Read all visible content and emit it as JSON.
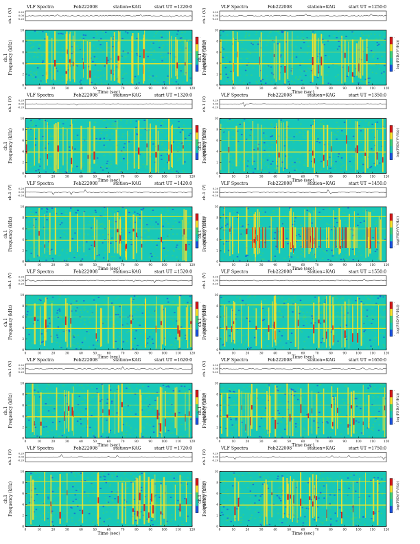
{
  "sheet": {
    "instrument": "VLF Spectra",
    "date": "Feb222008",
    "station": "station=KAG",
    "start_prefix": "start  UT  ="
  },
  "axes": {
    "ch_label": "ch.1 (V)",
    "freq_label": "Frequency (kHz)",
    "freq_prefix": "ch.1",
    "time_label": "Time (sec)",
    "cbar_label": "log(PSD/(V²/Hz))",
    "v_ticks": [
      "0.20",
      "0.00",
      "-0.20"
    ],
    "f_ticks": [
      "0",
      "2",
      "4",
      "6",
      "8",
      "10"
    ],
    "t_ticks": [
      "0",
      "10",
      "20",
      "30",
      "40",
      "50",
      "60",
      "70",
      "80",
      "90",
      "100",
      "110",
      "120"
    ],
    "cbar_ticks": [
      "-",
      "-"
    ]
  },
  "colors": {
    "background_field": "#18c8b8",
    "noise": "#3cd27a",
    "low": "#1a52e0",
    "high": "#f7e02a",
    "peak": "#d41818",
    "line_8k": "#d6e61e",
    "line_4k": "#eee524"
  },
  "chart_data": [
    {
      "type": "heatmap",
      "start_ut": "1220:0",
      "x": {
        "label": "Time (sec)",
        "range": [
          0,
          120
        ]
      },
      "y": {
        "label": "Frequency (kHz)",
        "range": [
          0,
          10
        ]
      },
      "grid": false,
      "colorbar": "right"
    },
    {
      "type": "heatmap",
      "start_ut": "1250:0",
      "x": {
        "label": "Time (sec)",
        "range": [
          0,
          120
        ]
      },
      "y": {
        "label": "Frequency (kHz)",
        "range": [
          0,
          10
        ]
      },
      "grid": false,
      "colorbar": "right"
    },
    {
      "type": "heatmap",
      "start_ut": "1320:0",
      "x": {
        "label": "Time (sec)",
        "range": [
          0,
          120
        ]
      },
      "y": {
        "label": "Frequency (kHz)",
        "range": [
          0,
          10
        ]
      },
      "grid": false,
      "colorbar": "right"
    },
    {
      "type": "heatmap",
      "start_ut": "1350:0",
      "x": {
        "label": "Time (sec)",
        "range": [
          0,
          120
        ]
      },
      "y": {
        "label": "Frequency (kHz)",
        "range": [
          0,
          10
        ]
      },
      "grid": false,
      "colorbar": "right"
    },
    {
      "type": "heatmap",
      "start_ut": "1420:0",
      "x": {
        "label": "Time (sec)",
        "range": [
          0,
          120
        ]
      },
      "y": {
        "label": "Frequency (kHz)",
        "range": [
          0,
          10
        ]
      },
      "grid": false,
      "colorbar": "right"
    },
    {
      "type": "heatmap",
      "start_ut": "1450:0",
      "x": {
        "label": "Time (sec)",
        "range": [
          0,
          120
        ]
      },
      "y": {
        "label": "Frequency (kHz)",
        "range": [
          0,
          10
        ]
      },
      "grid": false,
      "colorbar": "right"
    },
    {
      "type": "heatmap",
      "start_ut": "1520:0",
      "x": {
        "label": "Time (sec)",
        "range": [
          0,
          120
        ]
      },
      "y": {
        "label": "Frequency (kHz)",
        "range": [
          0,
          10
        ]
      },
      "grid": false,
      "colorbar": "right"
    },
    {
      "type": "heatmap",
      "start_ut": "1550:0",
      "x": {
        "label": "Time (sec)",
        "range": [
          0,
          120
        ]
      },
      "y": {
        "label": "Frequency (kHz)",
        "range": [
          0,
          10
        ]
      },
      "grid": false,
      "colorbar": "right"
    },
    {
      "type": "heatmap",
      "start_ut": "1620:0",
      "x": {
        "label": "Time (sec)",
        "range": [
          0,
          120
        ]
      },
      "y": {
        "label": "Frequency (kHz)",
        "range": [
          0,
          10
        ]
      },
      "grid": false,
      "colorbar": "right"
    },
    {
      "type": "heatmap",
      "start_ut": "1650:0",
      "x": {
        "label": "Time (sec)",
        "range": [
          0,
          120
        ]
      },
      "y": {
        "label": "Frequency (kHz)",
        "range": [
          0,
          10
        ]
      },
      "grid": false,
      "colorbar": "right"
    },
    {
      "type": "heatmap",
      "start_ut": "1720:0",
      "x": {
        "label": "Time (sec)",
        "range": [
          0,
          120
        ]
      },
      "y": {
        "label": "Frequency (kHz)",
        "range": [
          0,
          10
        ]
      },
      "grid": false,
      "colorbar": "right"
    },
    {
      "type": "heatmap",
      "start_ut": "1750:0",
      "x": {
        "label": "Time (sec)",
        "range": [
          0,
          120
        ]
      },
      "y": {
        "label": "Frequency (kHz)",
        "range": [
          0,
          10
        ]
      },
      "grid": false,
      "colorbar": "right"
    }
  ]
}
